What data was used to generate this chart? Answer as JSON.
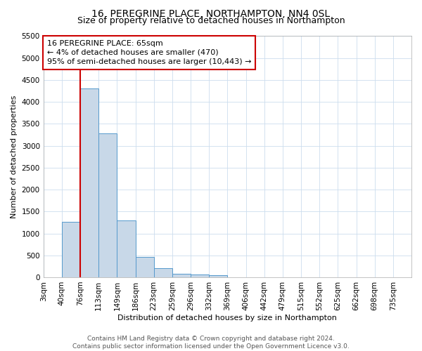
{
  "title": "16, PEREGRINE PLACE, NORTHAMPTON, NN4 0SL",
  "subtitle": "Size of property relative to detached houses in Northampton",
  "xlabel": "Distribution of detached houses by size in Northampton",
  "ylabel": "Number of detached properties",
  "bar_color": "#c8d8e8",
  "bar_edge_color": "#5599cc",
  "annotation_box_color": "#cc0000",
  "property_line_color": "#cc0000",
  "background_color": "#ffffff",
  "grid_color": "#ccddee",
  "bin_labels": [
    "3sqm",
    "40sqm",
    "76sqm",
    "113sqm",
    "149sqm",
    "186sqm",
    "223sqm",
    "259sqm",
    "296sqm",
    "332sqm",
    "369sqm",
    "406sqm",
    "442sqm",
    "479sqm",
    "515sqm",
    "552sqm",
    "625sqm",
    "662sqm",
    "698sqm",
    "735sqm"
  ],
  "bar_values": [
    0,
    1270,
    4310,
    3290,
    1290,
    470,
    200,
    85,
    65,
    55,
    0,
    0,
    0,
    0,
    0,
    0,
    0,
    0,
    0,
    0
  ],
  "property_line_x": 2.0,
  "annotation_text": "16 PEREGRINE PLACE: 65sqm\n← 4% of detached houses are smaller (470)\n95% of semi-detached houses are larger (10,443) →",
  "ylim": [
    0,
    5500
  ],
  "yticks": [
    0,
    500,
    1000,
    1500,
    2000,
    2500,
    3000,
    3500,
    4000,
    4500,
    5000,
    5500
  ],
  "footer_text": "Contains HM Land Registry data © Crown copyright and database right 2024.\nContains public sector information licensed under the Open Government Licence v3.0.",
  "title_fontsize": 10,
  "subtitle_fontsize": 9,
  "axis_fontsize": 8,
  "tick_fontsize": 7.5,
  "annotation_fontsize": 8,
  "footer_fontsize": 6.5
}
